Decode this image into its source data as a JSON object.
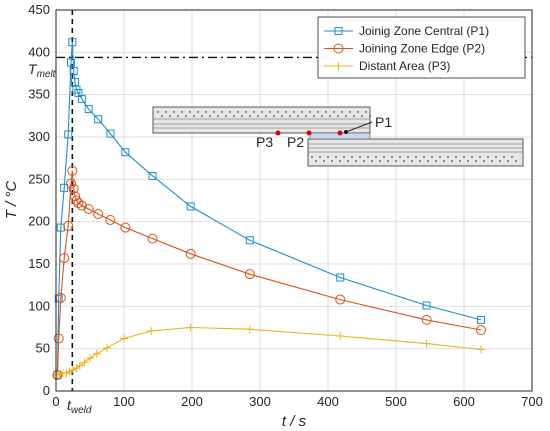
{
  "chart_data": {
    "type": "line",
    "xlabel": "t / s",
    "ylabel": "T / °C",
    "xlim": [
      0,
      700
    ],
    "ylim": [
      0,
      450
    ],
    "xticks": [
      0,
      100,
      200,
      300,
      400,
      500,
      600,
      700
    ],
    "yticks": [
      0,
      50,
      100,
      150,
      200,
      250,
      300,
      350,
      400,
      450
    ],
    "grid": true,
    "legend_position": "top-right",
    "series": [
      {
        "name": "Joinig Zone Central (P1)",
        "color": "#1f8fc9",
        "marker": "square",
        "x": [
          2,
          4,
          7,
          12,
          18,
          22,
          24,
          26,
          28,
          30,
          33,
          38,
          48,
          62,
          80,
          102,
          142,
          198,
          285,
          418,
          545,
          625
        ],
        "y": [
          19,
          109,
          193,
          240,
          303,
          388,
          412,
          378,
          365,
          356,
          352,
          345,
          333,
          321,
          304,
          282,
          254,
          218,
          178,
          134,
          101,
          84
        ]
      },
      {
        "name": "Joining Zone Edge (P2)",
        "color": "#d95319",
        "marker": "circle",
        "x": [
          2,
          4,
          7,
          12,
          18,
          22,
          24,
          26,
          28,
          30,
          33,
          38,
          48,
          62,
          80,
          102,
          142,
          198,
          285,
          418,
          545,
          625
        ],
        "y": [
          19,
          62,
          110,
          157,
          195,
          245,
          260,
          239,
          230,
          225,
          222,
          219,
          215,
          209,
          202,
          193,
          180,
          162,
          138,
          108,
          84,
          72
        ]
      },
      {
        "name": "Distant Area (P3)",
        "color": "#edb120",
        "marker": "plus",
        "x": [
          2,
          5,
          10,
          15,
          20,
          25,
          30,
          35,
          42,
          50,
          60,
          75,
          100,
          140,
          198,
          285,
          418,
          545,
          625
        ],
        "y": [
          19,
          20,
          21,
          21,
          23,
          25,
          27,
          30,
          34,
          39,
          44,
          51,
          62,
          71,
          75,
          73,
          65,
          56,
          49
        ]
      }
    ],
    "reference_lines": [
      {
        "orientation": "horizontal",
        "value": 394,
        "style": "dashdot",
        "label": "T",
        "label_sub": "melt"
      },
      {
        "orientation": "vertical",
        "value": 24,
        "style": "dashed",
        "label": "t",
        "label_sub": "weld"
      }
    ],
    "inset_labels": [
      "P1",
      "P2",
      "P3"
    ]
  }
}
